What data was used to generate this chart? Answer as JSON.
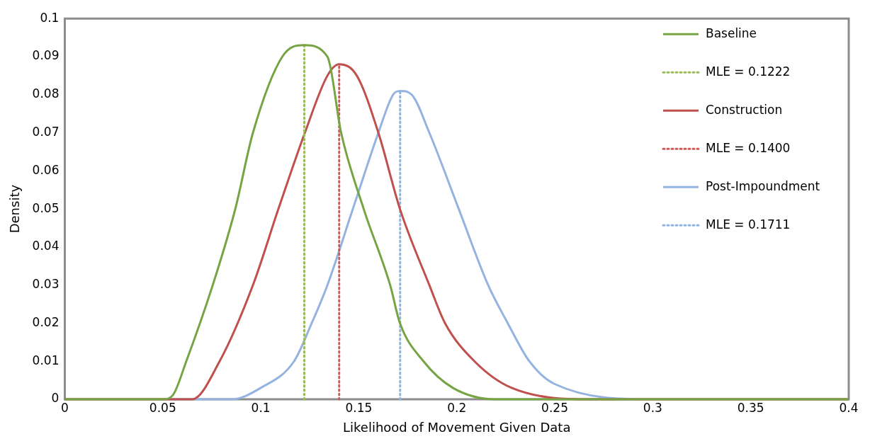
{
  "chart_data": {
    "type": "line",
    "xlabel": "Likelihood of Movement Given Data",
    "ylabel": "Density",
    "xlim": [
      0,
      0.4
    ],
    "ylim": [
      0,
      0.1
    ],
    "xticks": [
      0,
      0.05,
      0.1,
      0.15,
      0.2,
      0.25,
      0.3,
      0.35,
      0.4
    ],
    "yticks": [
      0,
      0.01,
      0.02,
      0.03,
      0.04,
      0.05,
      0.06,
      0.07,
      0.08,
      0.09,
      0.1
    ],
    "grid": false,
    "legend": "top right",
    "marker": "none",
    "line_style": "solid",
    "series": [
      {
        "name": "Baseline",
        "color": "#77a442",
        "x": [
          0,
          0.05,
          0.055,
          0.062,
          0.0755,
          0.087,
          0.096,
          0.111,
          0.1222,
          0.134,
          0.141,
          0.1525,
          0.166,
          0.171,
          0.183,
          0.198,
          0.22,
          0.4
        ],
        "values": [
          0,
          0,
          0.001,
          0.01,
          0.03,
          0.05,
          0.07,
          0.09,
          0.093,
          0.09,
          0.07,
          0.05,
          0.03,
          0.02,
          0.01,
          0.003,
          0,
          0
        ]
      },
      {
        "name": "MLE = 0.1222",
        "color": "#9bbb59",
        "line_style": "dotted",
        "x": [
          0.1222,
          0.1222
        ],
        "values": [
          0,
          0.093
        ]
      },
      {
        "name": "Construction",
        "color": "#c0504d",
        "x": [
          0,
          0.065,
          0.079,
          0.096,
          0.109,
          0.1225,
          0.134,
          0.14,
          0.149,
          0.16,
          0.171,
          0.186,
          0.194,
          0.209,
          0.228,
          0.27,
          0.4
        ],
        "values": [
          0,
          0,
          0.01,
          0.03,
          0.05,
          0.07,
          0.085,
          0.088,
          0.085,
          0.07,
          0.05,
          0.03,
          0.02,
          0.01,
          0.003,
          0,
          0
        ]
      },
      {
        "name": "MLE = 0.1400",
        "color": "#d05a57",
        "line_style": "dotted",
        "x": [
          0.14,
          0.14
        ],
        "values": [
          0,
          0.088
        ]
      },
      {
        "name": "Post-Impoundment",
        "color": "#95b3e0",
        "x": [
          0,
          0.085,
          0.1,
          0.117,
          0.126,
          0.134,
          0.147,
          0.16,
          0.1675,
          0.1711,
          0.177,
          0.186,
          0.201,
          0.216,
          0.226,
          0.237,
          0.25,
          0.3,
          0.4
        ],
        "values": [
          0,
          0,
          0.003,
          0.01,
          0.02,
          0.03,
          0.05,
          0.07,
          0.08,
          0.081,
          0.08,
          0.07,
          0.05,
          0.03,
          0.02,
          0.01,
          0.004,
          0,
          0
        ]
      },
      {
        "name": "MLE = 0.1711",
        "color": "#8db4e2",
        "line_style": "dotted",
        "x": [
          0.1711,
          0.1711
        ],
        "values": [
          0,
          0.081
        ]
      }
    ]
  }
}
